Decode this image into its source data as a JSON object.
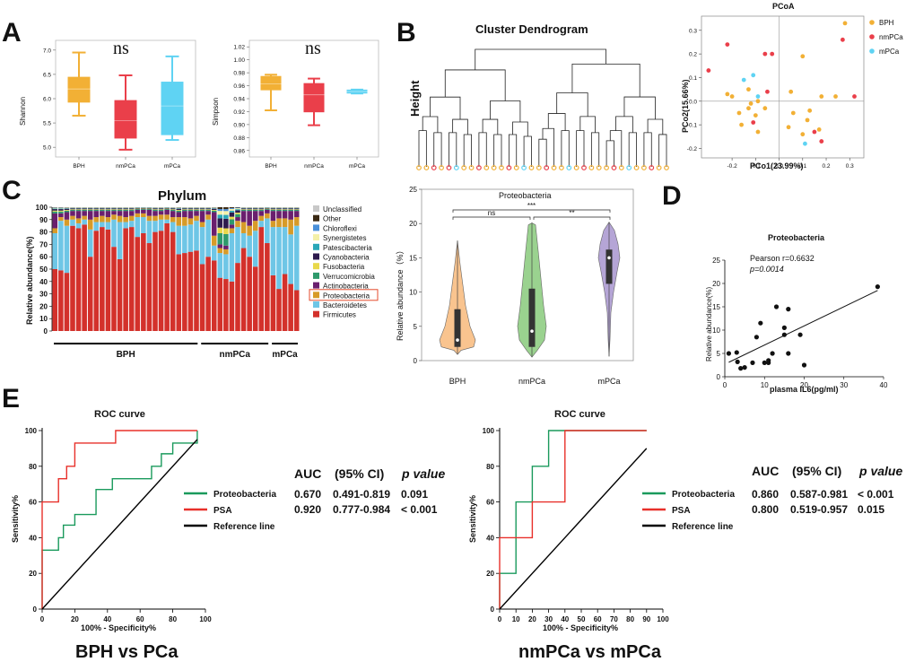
{
  "panel_letters": {
    "a": "A",
    "b": "B",
    "c": "C",
    "d": "D",
    "e": "E"
  },
  "colors": {
    "BPH": "#f2b035",
    "nmPCa": "#ea3f4a",
    "mPCa": "#5fd3f3",
    "green": "#1a9a5c",
    "red": "#e8302a",
    "violinBPH": "#f9c48f",
    "violinNm": "#9ad28f",
    "violinM": "#b5a5d6"
  },
  "chart_data": [
    {
      "id": "shannon",
      "type": "box",
      "ylabel": "Shannon",
      "annotation": "ns",
      "categories": [
        "BPH",
        "nmPCa",
        "mPCa"
      ],
      "ylim": [
        4.8,
        7.2
      ],
      "yticks": [
        "5.0",
        "5.5",
        "6.0",
        "6.5",
        "7.0"
      ],
      "boxes": [
        {
          "group": "BPH",
          "min": 5.65,
          "q1": 5.92,
          "median": 6.2,
          "q3": 6.45,
          "max": 6.95
        },
        {
          "group": "nmPCa",
          "min": 4.95,
          "q1": 5.18,
          "median": 5.55,
          "q3": 5.97,
          "max": 6.48
        },
        {
          "group": "mPCa",
          "min": 5.15,
          "q1": 5.25,
          "median": 5.85,
          "q3": 6.35,
          "max": 6.87
        }
      ]
    },
    {
      "id": "simpson",
      "type": "box",
      "ylabel": "Simpson",
      "annotation": "ns",
      "categories": [
        "BPH",
        "nmPCa",
        "mPCa"
      ],
      "ylim": [
        0.85,
        1.03
      ],
      "yticks": [
        "0.86",
        "0.88",
        "0.90",
        "0.92",
        "0.94",
        "0.96",
        "0.98",
        "1.00",
        "1.02"
      ],
      "boxes": [
        {
          "group": "BPH",
          "min": 0.922,
          "q1": 0.953,
          "median": 0.963,
          "q3": 0.975,
          "max": 0.977
        },
        {
          "group": "nmPCa",
          "min": 0.899,
          "q1": 0.919,
          "median": 0.946,
          "q3": 0.964,
          "max": 0.971
        },
        {
          "group": "mPCa",
          "min": 0.948,
          "q1": 0.948,
          "median": 0.951,
          "q3": 0.954,
          "max": 0.954
        }
      ]
    },
    {
      "id": "dendrogram",
      "type": "dendrogram",
      "title": "Cluster Dendrogram",
      "ylabel": "Height",
      "leaf_groups": [
        "BPH",
        "BPH",
        "nmPCa",
        "BPH",
        "nmPCa",
        "mPCa",
        "BPH",
        "BPH",
        "nmPCa",
        "BPH",
        "BPH",
        "BPH",
        "nmPCa",
        "BPH",
        "mPCa",
        "BPH",
        "BPH",
        "nmPCa",
        "BPH",
        "BPH",
        "mPCa",
        "BPH",
        "nmPCa",
        "BPH",
        "BPH",
        "BPH",
        "nmPCa",
        "BPH",
        "mPCa",
        "BPH",
        "BPH",
        "nmPCa",
        "BPH",
        "BPH"
      ]
    },
    {
      "id": "pcoa",
      "type": "scatter",
      "title": "PCoA",
      "xlabel": "PCo1(23.99%)",
      "ylabel": "PCo2(15.66%)",
      "xlim": [
        -0.33,
        0.36
      ],
      "ylim": [
        -0.24,
        0.36
      ],
      "xticks": [
        "-0.2",
        "-0.1",
        "0.0",
        "0.1",
        "0.2",
        "0.3"
      ],
      "yticks": [
        "-0.2",
        "-0.1",
        "0.0",
        "0.1",
        "0.2",
        "0.3"
      ],
      "legend": [
        "BPH",
        "nmPCa",
        "mPCa"
      ],
      "points": [
        {
          "g": "BPH",
          "x": 0.28,
          "y": 0.33
        },
        {
          "g": "BPH",
          "x": 0.1,
          "y": 0.19
        },
        {
          "g": "BPH",
          "x": -0.22,
          "y": 0.03
        },
        {
          "g": "BPH",
          "x": -0.2,
          "y": 0.02
        },
        {
          "g": "BPH",
          "x": -0.13,
          "y": 0.05
        },
        {
          "g": "BPH",
          "x": -0.12,
          "y": -0.01
        },
        {
          "g": "BPH",
          "x": -0.09,
          "y": 0.0
        },
        {
          "g": "BPH",
          "x": -0.06,
          "y": -0.03
        },
        {
          "g": "BPH",
          "x": -0.17,
          "y": -0.05
        },
        {
          "g": "BPH",
          "x": -0.1,
          "y": -0.06
        },
        {
          "g": "BPH",
          "x": -0.13,
          "y": -0.03
        },
        {
          "g": "BPH",
          "x": -0.16,
          "y": -0.1
        },
        {
          "g": "BPH",
          "x": -0.09,
          "y": -0.13
        },
        {
          "g": "BPH",
          "x": 0.05,
          "y": 0.04
        },
        {
          "g": "BPH",
          "x": 0.06,
          "y": -0.05
        },
        {
          "g": "BPH",
          "x": 0.04,
          "y": -0.11
        },
        {
          "g": "BPH",
          "x": 0.13,
          "y": -0.04
        },
        {
          "g": "BPH",
          "x": 0.18,
          "y": 0.02
        },
        {
          "g": "BPH",
          "x": 0.24,
          "y": 0.02
        },
        {
          "g": "BPH",
          "x": 0.1,
          "y": -0.14
        },
        {
          "g": "BPH",
          "x": 0.17,
          "y": -0.12
        },
        {
          "g": "BPH",
          "x": 0.12,
          "y": -0.08
        },
        {
          "g": "nmPCa",
          "x": -0.3,
          "y": 0.13
        },
        {
          "g": "nmPCa",
          "x": -0.22,
          "y": 0.24
        },
        {
          "g": "nmPCa",
          "x": -0.06,
          "y": 0.2
        },
        {
          "g": "nmPCa",
          "x": -0.03,
          "y": 0.2
        },
        {
          "g": "nmPCa",
          "x": 0.27,
          "y": 0.26
        },
        {
          "g": "nmPCa",
          "x": -0.05,
          "y": 0.04
        },
        {
          "g": "nmPCa",
          "x": -0.11,
          "y": -0.09
        },
        {
          "g": "nmPCa",
          "x": 0.15,
          "y": -0.13
        },
        {
          "g": "nmPCa",
          "x": 0.18,
          "y": -0.17
        },
        {
          "g": "nmPCa",
          "x": 0.32,
          "y": 0.02
        },
        {
          "g": "mPCa",
          "x": -0.15,
          "y": 0.09
        },
        {
          "g": "mPCa",
          "x": -0.11,
          "y": 0.11
        },
        {
          "g": "mPCa",
          "x": -0.09,
          "y": 0.02
        },
        {
          "g": "mPCa",
          "x": 0.11,
          "y": -0.18
        }
      ]
    },
    {
      "id": "phylum",
      "type": "stacked-bar",
      "title": "Phylum",
      "ylabel": "Relative abundance(%)",
      "ylim": [
        0,
        100
      ],
      "yticks": [
        "0",
        "10",
        "20",
        "30",
        "40",
        "50",
        "60",
        "70",
        "80",
        "90",
        "100"
      ],
      "groups": [
        {
          "name": "BPH",
          "n": 25
        },
        {
          "name": "nmPCa",
          "n": 12
        },
        {
          "name": "mPCa",
          "n": 5
        }
      ],
      "legend": [
        "Unclassified",
        "Other",
        "Chloroflexi",
        "Synergistetes",
        "Patescibacteria",
        "Cyanobacteria",
        "Fusobacteria",
        "Verrucomicrobia",
        "Actinobacteria",
        "Proteobacteria",
        "Bacteroidetes",
        "Firmicutes"
      ],
      "highlighted_legend": "Proteobacteria",
      "legend_colors": [
        "#c8c8c8",
        "#3b2a14",
        "#4a90d9",
        "#f4f0a8",
        "#2aa7b8",
        "#2d1b4e",
        "#e8d84a",
        "#2e9a6c",
        "#6a1f6e",
        "#d79b28",
        "#6ec6e6",
        "#d3312b"
      ],
      "firmicutes": [
        50,
        49,
        47,
        85,
        83,
        86,
        60,
        81,
        84,
        82,
        68,
        58,
        83,
        84,
        76,
        79,
        71,
        80,
        81,
        87,
        80,
        62,
        63,
        64,
        65,
        54,
        60,
        57,
        43,
        42,
        40,
        55,
        67,
        60,
        52,
        84,
        71,
        45,
        34,
        46,
        38,
        33
      ],
      "bacteroidetes": [
        29,
        40,
        38,
        5,
        4,
        4,
        22,
        7,
        4,
        6,
        22,
        30,
        5,
        5,
        16,
        13,
        18,
        9,
        9,
        3,
        8,
        23,
        22,
        22,
        24,
        30,
        30,
        12,
        20,
        20,
        39,
        29,
        12,
        17,
        29,
        5,
        20,
        39,
        50,
        38,
        40,
        52
      ],
      "proteobacteria": [
        4,
        3,
        5,
        3,
        4,
        3,
        8,
        4,
        5,
        4,
        4,
        5,
        4,
        4,
        3,
        3,
        4,
        4,
        4,
        4,
        4,
        7,
        7,
        5,
        4,
        4,
        4,
        8,
        4,
        4,
        4,
        5,
        9,
        8,
        8,
        4,
        4,
        5,
        7,
        7,
        12,
        7
      ],
      "actinobacteria": [
        12,
        3,
        6,
        4,
        6,
        4,
        7,
        5,
        4,
        5,
        3,
        4,
        5,
        4,
        3,
        3,
        5,
        4,
        3,
        4,
        5,
        4,
        5,
        6,
        4,
        9,
        3,
        19,
        3,
        3,
        3,
        3,
        9,
        12,
        8,
        4,
        3,
        8,
        6,
        6,
        7,
        5
      ]
    },
    {
      "id": "violin",
      "type": "violin",
      "title": "Proteobacteria",
      "ylabel": "Relative abundance（%）",
      "categories": [
        "BPH",
        "nmPCa",
        "mPCa"
      ],
      "ylim": [
        0,
        25
      ],
      "yticks": [
        "0",
        "5",
        "10",
        "15",
        "20",
        "25"
      ],
      "medians": [
        3.0,
        4.3,
        15.0
      ],
      "q1": [
        2.0,
        2.0,
        11.2
      ],
      "q3": [
        7.5,
        10.5,
        16.2
      ],
      "significance": [
        {
          "pair": "BPH-nmPCa",
          "label": "ns"
        },
        {
          "pair": "nmPCa-mPCa",
          "label": "**"
        },
        {
          "pair": "BPH-mPCa",
          "label": "***"
        }
      ]
    },
    {
      "id": "correlation",
      "type": "scatter",
      "title": "Proteobacteria",
      "annotation_r": "Pearson r=0.6632",
      "annotation_p": "p=0.0014",
      "xlabel": "plasma IL6(pg/ml)",
      "ylabel": "Relative abundance(%)",
      "xlim": [
        0,
        40
      ],
      "ylim": [
        0,
        25
      ],
      "xticks": [
        "0",
        "10",
        "20",
        "30",
        "40"
      ],
      "yticks": [
        "0",
        "5",
        "10",
        "15",
        "20",
        "25"
      ],
      "points": [
        [
          1,
          5
        ],
        [
          3,
          5.2
        ],
        [
          3.2,
          3.2
        ],
        [
          4,
          1.8
        ],
        [
          5,
          2
        ],
        [
          7,
          3
        ],
        [
          8,
          8.5
        ],
        [
          9,
          11.5
        ],
        [
          10,
          3
        ],
        [
          11,
          3
        ],
        [
          11,
          3.5
        ],
        [
          12,
          5
        ],
        [
          13,
          15
        ],
        [
          15,
          9
        ],
        [
          15,
          10.5
        ],
        [
          16,
          5
        ],
        [
          16,
          14.5
        ],
        [
          19,
          9
        ],
        [
          20,
          2.5
        ],
        [
          38.5,
          19.3
        ]
      ],
      "fit": {
        "x0": 1,
        "y0": 3.1,
        "x1": 38.5,
        "y1": 18.5
      }
    },
    {
      "id": "roc1",
      "type": "line",
      "title": "ROC curve",
      "xlabel": "100% - Specificity%",
      "ylabel": "Sensitivity%",
      "xlim": [
        0,
        100
      ],
      "ylim": [
        0,
        100
      ],
      "xticks": [
        "0",
        "20",
        "40",
        "60",
        "80",
        "100"
      ],
      "yticks": [
        "0",
        "20",
        "40",
        "60",
        "80",
        "100"
      ],
      "subtitle": "BPH vs PCa",
      "series": [
        {
          "name": "Proteobacteria",
          "points": [
            [
              0,
              0
            ],
            [
              0,
              33
            ],
            [
              10,
              33
            ],
            [
              10,
              40
            ],
            [
              13,
              40
            ],
            [
              13,
              47
            ],
            [
              20,
              47
            ],
            [
              20,
              53
            ],
            [
              33,
              53
            ],
            [
              33,
              67
            ],
            [
              43,
              67
            ],
            [
              43,
              73
            ],
            [
              67,
              73
            ],
            [
              67,
              80
            ],
            [
              73,
              80
            ],
            [
              73,
              87
            ],
            [
              80,
              87
            ],
            [
              80,
              93
            ],
            [
              95,
              93
            ],
            [
              95,
              100
            ]
          ]
        },
        {
          "name": "PSA",
          "points": [
            [
              0,
              0
            ],
            [
              0,
              60
            ],
            [
              10,
              60
            ],
            [
              10,
              73
            ],
            [
              15,
              73
            ],
            [
              15,
              80
            ],
            [
              20,
              80
            ],
            [
              20,
              93
            ],
            [
              45,
              93
            ],
            [
              45,
              100
            ],
            [
              95,
              100
            ]
          ]
        },
        {
          "name": "Reference line",
          "points": [
            [
              0,
              0
            ],
            [
              95,
              95
            ]
          ]
        }
      ],
      "table": {
        "headers": [
          "AUC",
          "(95% CI)",
          "p value"
        ],
        "rows": [
          [
            "0.670",
            "0.491-0.819",
            "0.091"
          ],
          [
            "0.920",
            "0.777-0.984",
            "< 0.001"
          ]
        ]
      }
    },
    {
      "id": "roc2",
      "type": "line",
      "title": "ROC curve",
      "xlabel": "100% - Specificity%",
      "ylabel": "Sensitivity%",
      "xlim": [
        0,
        100
      ],
      "ylim": [
        0,
        100
      ],
      "xticks": [
        "0",
        "10",
        "20",
        "30",
        "40",
        "50",
        "60",
        "70",
        "80",
        "90",
        "100"
      ],
      "yticks": [
        "0",
        "20",
        "40",
        "60",
        "80",
        "100"
      ],
      "subtitle": "nmPCa vs mPCa",
      "series": [
        {
          "name": "Proteobacteria",
          "points": [
            [
              0,
              0
            ],
            [
              0,
              20
            ],
            [
              10,
              20
            ],
            [
              10,
              60
            ],
            [
              20,
              60
            ],
            [
              20,
              80
            ],
            [
              30,
              80
            ],
            [
              30,
              100
            ],
            [
              90,
              100
            ]
          ]
        },
        {
          "name": "PSA",
          "points": [
            [
              0,
              0
            ],
            [
              0,
              40
            ],
            [
              20,
              40
            ],
            [
              20,
              60
            ],
            [
              40,
              60
            ],
            [
              40,
              100
            ],
            [
              90,
              100
            ]
          ]
        },
        {
          "name": "Reference line",
          "points": [
            [
              0,
              0
            ],
            [
              90,
              90
            ]
          ]
        }
      ],
      "table": {
        "headers": [
          "AUC",
          "(95% CI)",
          "p value"
        ],
        "rows": [
          [
            "0.860",
            "0.587-0.981",
            "< 0.001"
          ],
          [
            "0.800",
            "0.519-0.957",
            "0.015"
          ]
        ]
      }
    }
  ]
}
